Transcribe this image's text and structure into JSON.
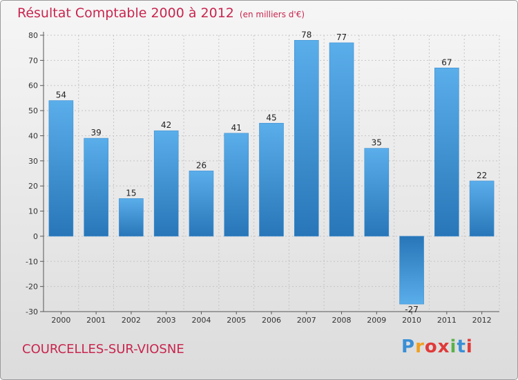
{
  "title": {
    "main": "Résultat Comptable 2000 à 2012",
    "unit": "(en milliers d'€)"
  },
  "commune": "COURCELLES-SUR-VIOSNE",
  "logo": {
    "letters": [
      "P",
      "r",
      "o",
      "x",
      "i",
      "t",
      "i"
    ],
    "colors": [
      "#3a8fd6",
      "#f0a020",
      "#e03a3a",
      "#e03a3a",
      "#5ab24a",
      "#3a8fd6",
      "#e03a3a"
    ]
  },
  "colors": {
    "title": "#c8254e",
    "bar_light": "#5aaeea",
    "bar_dark": "#2876b8"
  },
  "chart_data": {
    "type": "bar",
    "title": "Résultat Comptable 2000 à 2012",
    "subtitle": "(en milliers d'€)",
    "xlabel": "",
    "ylabel": "",
    "categories": [
      "2000",
      "2001",
      "2002",
      "2003",
      "2004",
      "2005",
      "2006",
      "2007",
      "2008",
      "2009",
      "2010",
      "2011",
      "2012"
    ],
    "values": [
      54,
      39,
      15,
      42,
      26,
      41,
      45,
      78,
      77,
      35,
      -27,
      67,
      22
    ],
    "value_labels": [
      "54",
      "39",
      "15",
      "42",
      "26",
      "41",
      "45",
      "78",
      "77",
      "35",
      "-27",
      "67",
      "22"
    ],
    "ylim": [
      -30,
      80
    ],
    "yticks": [
      -30,
      -20,
      -10,
      0,
      10,
      20,
      30,
      40,
      50,
      60,
      70,
      80
    ],
    "grid": true
  }
}
